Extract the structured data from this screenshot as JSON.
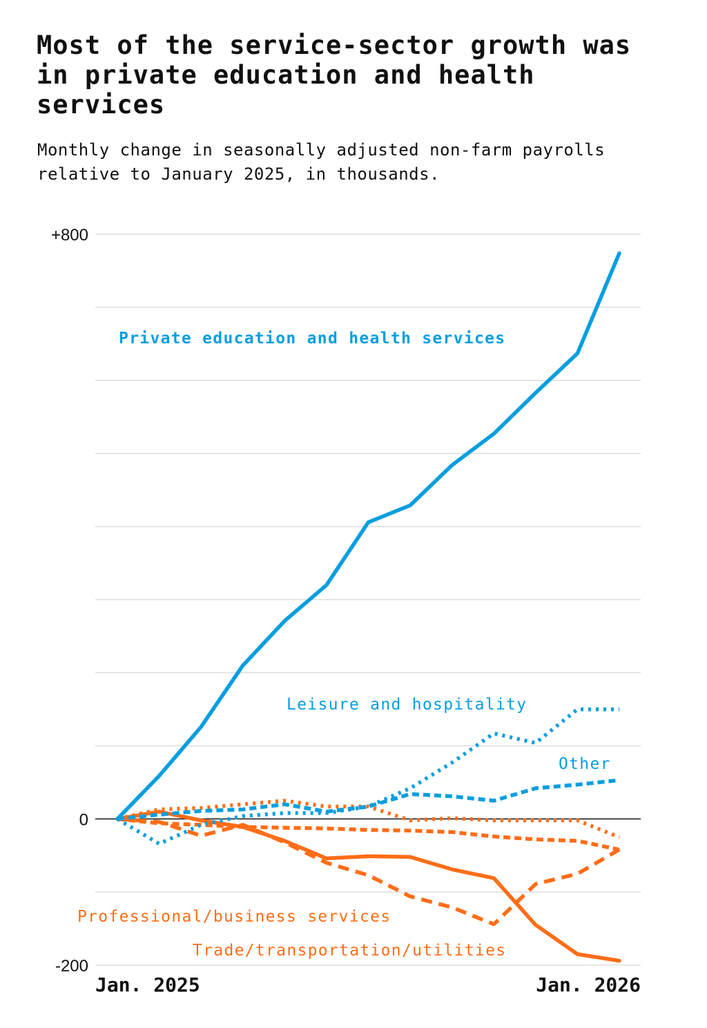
{
  "chart_data": {
    "type": "line",
    "title": "Most of the service-sector growth was in private education and health services",
    "subtitle": "Monthly change in seasonally adjusted non-farm payrolls relative to January 2025, in thousands.",
    "x": [
      "2025-01",
      "2025-02",
      "2025-03",
      "2025-04",
      "2025-05",
      "2025-06",
      "2025-07",
      "2025-08",
      "2025-09",
      "2025-10",
      "2025-11",
      "2025-12",
      "2026-01"
    ],
    "x_tick_labels": [
      {
        "x": "2025-01",
        "label": "Jan. 2025"
      },
      {
        "x": "2026-01",
        "label": "Jan. 2026"
      }
    ],
    "y_tick_labels": [
      {
        "y": 800,
        "label": "+800"
      },
      {
        "y": 0,
        "label": "0"
      },
      {
        "y": -200,
        "label": "-200"
      }
    ],
    "ylim": [
      -200,
      800
    ],
    "grid": true,
    "grid_step": 100,
    "colors": {
      "blue": "#069ee0",
      "orange": "#ff6d17"
    },
    "series": [
      {
        "name": "Private education and health services",
        "color": "#069ee0",
        "style": "solid",
        "values": [
          0,
          59,
          126,
          210,
          271,
          320,
          406,
          429,
          484,
          527,
          583,
          637,
          774
        ]
      },
      {
        "name": "Leisure and hospitality",
        "color": "#069ee0",
        "style": "dotted",
        "values": [
          0,
          -34,
          -8,
          4,
          8,
          8,
          17,
          42,
          77,
          117,
          104,
          150,
          150
        ]
      },
      {
        "name": "Other",
        "color": "#069ee0",
        "style": "dashed",
        "values": [
          0,
          6,
          11,
          13,
          20,
          10,
          17,
          34,
          31,
          25,
          42,
          47,
          53
        ]
      },
      {
        "name": "Trade/transportation/utilities",
        "color": "#ff6d17",
        "style": "solid",
        "values": [
          0,
          10,
          -2,
          -11,
          -30,
          -54,
          -51,
          -52,
          -69,
          -81,
          -145,
          -185,
          -194
        ]
      },
      {
        "name": "Professional/business services",
        "color": "#ff6d17",
        "style": "dashed-long",
        "values": [
          0,
          -4,
          -23,
          -8,
          -32,
          -60,
          -77,
          -106,
          -121,
          -144,
          -89,
          -75,
          -42
        ]
      },
      {
        "color": "#ff6d17",
        "style": "dotted",
        "values": [
          0,
          13,
          15,
          20,
          25,
          17,
          17,
          -2,
          1,
          -2,
          -2,
          -2,
          -25
        ]
      },
      {
        "color": "#ff6d17",
        "style": "dashed",
        "values": [
          0,
          -6,
          -8,
          -11,
          -12,
          -13,
          -15,
          -16,
          -18,
          -24,
          -28,
          -30,
          -42
        ]
      }
    ]
  }
}
